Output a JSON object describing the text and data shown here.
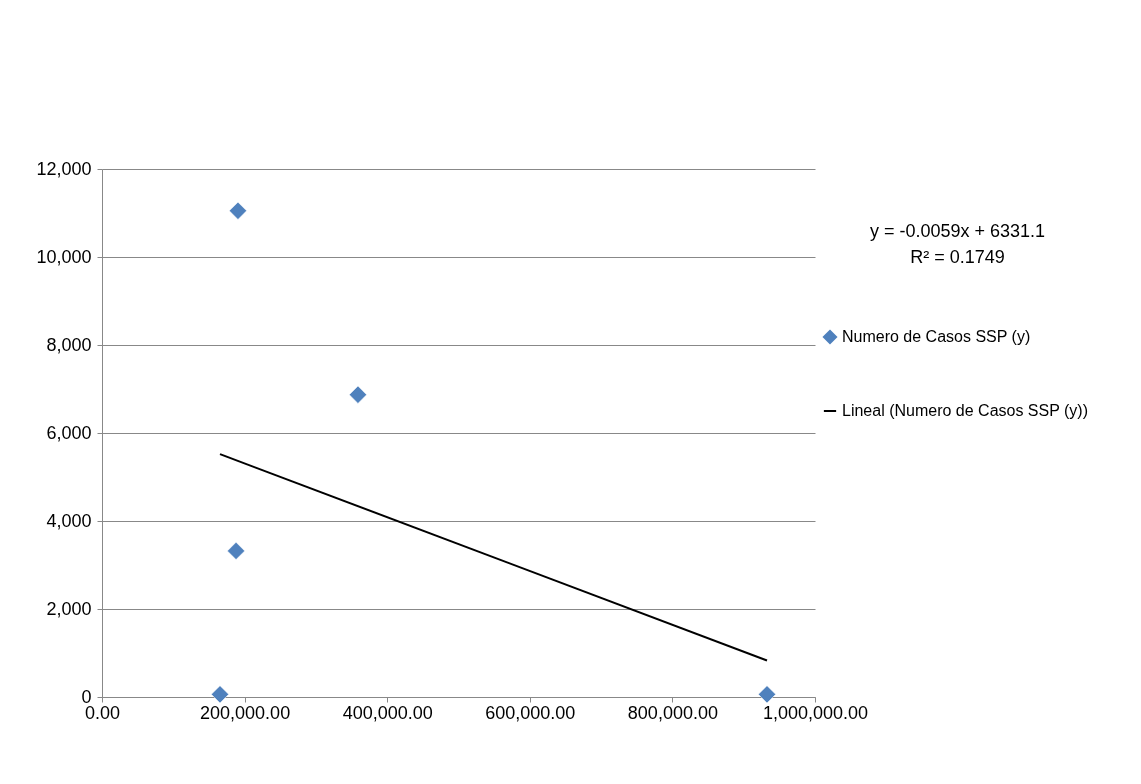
{
  "chart_data": {
    "type": "scatter",
    "annotations": [
      "y = -0.0059x + 6331.1",
      "R² = 0.1749"
    ],
    "series": [
      {
        "name": "Numero de Casos SSP (y)",
        "color": "#4f81bd",
        "marker": "diamond",
        "x": [
          190700,
          359000,
          188000,
          165500,
          932700
        ],
        "values": [
          11050,
          6870,
          3320,
          60,
          60
        ]
      },
      {
        "name": "Lineal (Numero de Casos SSP (y))",
        "type": "line",
        "color": "#000000",
        "line_style": "solid",
        "x": [
          165500,
          932700
        ],
        "values": [
          5520,
          830
        ]
      }
    ],
    "xlim": [
      0,
      1000000
    ],
    "xticks": [
      {
        "value": 0,
        "label": "0.00"
      },
      {
        "value": 200000,
        "label": "200,000.00"
      },
      {
        "value": 400000,
        "label": "400,000.00"
      },
      {
        "value": 600000,
        "label": "600,000.00"
      },
      {
        "value": 800000,
        "label": "800,000.00"
      },
      {
        "value": 1000000,
        "label": "1,000,000.00"
      }
    ],
    "ylim": [
      0,
      12000
    ],
    "yticks": [
      0,
      {
        "value": 2000,
        "label": "2,000"
      },
      {
        "value": 4000,
        "label": "4,000"
      },
      {
        "value": 6000,
        "label": "6,000"
      },
      {
        "value": 8000,
        "label": "8,000"
      },
      {
        "value": 10000,
        "label": "10,000"
      },
      {
        "value": 12000,
        "label": "12,000"
      }
    ],
    "grid": "y",
    "legend": "right"
  }
}
